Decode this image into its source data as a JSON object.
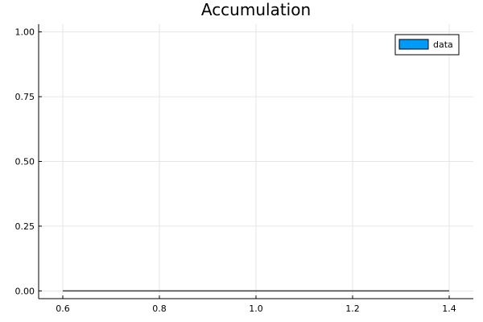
{
  "chart_data": {
    "type": "area",
    "title": "Accumulation",
    "xlabel": "",
    "ylabel": "",
    "xlim": [
      0.55,
      1.45
    ],
    "ylim": [
      -0.03,
      1.03
    ],
    "xticks": [
      0.6,
      0.8,
      1.0,
      1.2,
      1.4
    ],
    "xtick_labels": [
      "0.6",
      "0.8",
      "1.0",
      "1.2",
      "1.4"
    ],
    "yticks": [
      0.0,
      0.25,
      0.5,
      0.75,
      1.0
    ],
    "ytick_labels": [
      "0.00",
      "0.25",
      "0.50",
      "0.75",
      "1.00"
    ],
    "grid": true,
    "legend_position": "top-right",
    "series": [
      {
        "name": "data",
        "color": "#009af9",
        "x": [
          0.6,
          1.4
        ],
        "y": [
          0,
          0
        ]
      }
    ]
  }
}
